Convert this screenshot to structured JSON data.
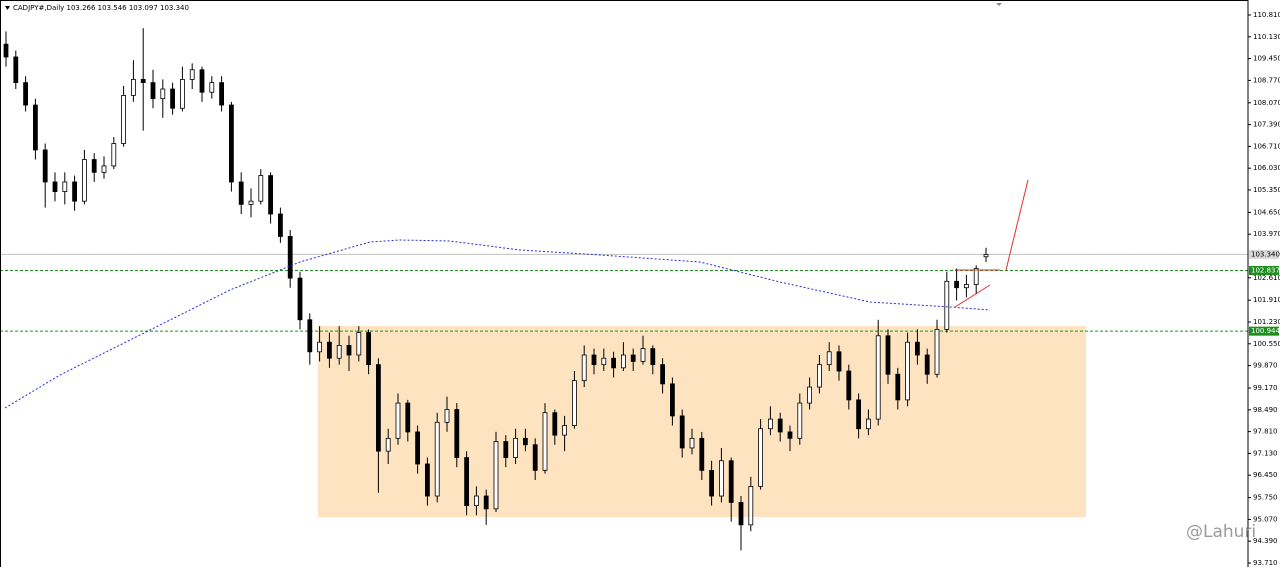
{
  "chart_data": {
    "type": "candlestick",
    "title": "CADJPY#,Daily  103.266 103.546 103.097 103.340",
    "watermark": "@Lahuri",
    "ylim": [
      93.585,
      111.278
    ],
    "yticks": [
      {
        "value": 110.81,
        "label": "110.810"
      },
      {
        "value": 110.13,
        "label": "110.130"
      },
      {
        "value": 109.45,
        "label": "109.450"
      },
      {
        "value": 108.77,
        "label": "108.770"
      },
      {
        "value": 108.07,
        "label": "108.070"
      },
      {
        "value": 107.39,
        "label": "107.390"
      },
      {
        "value": 106.71,
        "label": "106.710"
      },
      {
        "value": 106.03,
        "label": "106.030"
      },
      {
        "value": 105.35,
        "label": "105.350"
      },
      {
        "value": 104.65,
        "label": "104.650"
      },
      {
        "value": 103.97,
        "label": "103.970"
      },
      {
        "value": 102.61,
        "label": "102.610"
      },
      {
        "value": 101.91,
        "label": "101.910"
      },
      {
        "value": 101.23,
        "label": "101.230"
      },
      {
        "value": 100.55,
        "label": "100.550"
      },
      {
        "value": 99.87,
        "label": "99.870"
      },
      {
        "value": 99.17,
        "label": "99.170"
      },
      {
        "value": 98.49,
        "label": "98.490"
      },
      {
        "value": 97.81,
        "label": "97.810"
      },
      {
        "value": 97.13,
        "label": "97.130"
      },
      {
        "value": 96.45,
        "label": "96.450"
      },
      {
        "value": 95.75,
        "label": "95.750"
      },
      {
        "value": 95.07,
        "label": "95.070"
      },
      {
        "value": 94.39,
        "label": "94.390"
      },
      {
        "value": 93.71,
        "label": "93.710"
      }
    ],
    "last_price": {
      "value": 103.34,
      "label": "103.340"
    },
    "hlines": [
      102.837,
      100.944
    ],
    "hline_color": "#1e8f1e",
    "up_color": "#ffffff",
    "down_color": "#000000",
    "ohlc": [
      [
        109.9,
        110.3,
        109.2,
        109.5
      ],
      [
        109.5,
        109.7,
        108.5,
        108.7
      ],
      [
        108.7,
        108.9,
        107.8,
        108.0
      ],
      [
        108.0,
        108.2,
        106.3,
        106.6
      ],
      [
        106.6,
        106.8,
        104.8,
        105.6
      ],
      [
        105.6,
        105.9,
        105.0,
        105.3
      ],
      [
        105.3,
        105.9,
        104.9,
        105.6
      ],
      [
        105.6,
        105.8,
        104.7,
        105.0
      ],
      [
        105.0,
        106.6,
        104.9,
        106.3
      ],
      [
        106.3,
        106.5,
        105.6,
        105.9
      ],
      [
        105.9,
        106.4,
        105.7,
        106.1
      ],
      [
        106.1,
        107.0,
        106.0,
        106.8
      ],
      [
        106.8,
        108.6,
        106.7,
        108.3
      ],
      [
        108.3,
        109.4,
        108.1,
        108.8
      ],
      [
        108.8,
        110.4,
        107.2,
        108.7
      ],
      [
        108.7,
        109.1,
        107.9,
        108.2
      ],
      [
        108.2,
        108.8,
        107.6,
        108.5
      ],
      [
        108.5,
        108.7,
        107.7,
        107.9
      ],
      [
        107.9,
        109.2,
        107.8,
        108.8
      ],
      [
        108.8,
        109.3,
        108.5,
        109.1
      ],
      [
        109.1,
        109.2,
        108.1,
        108.4
      ],
      [
        108.4,
        108.9,
        108.2,
        108.7
      ],
      [
        108.7,
        108.9,
        107.8,
        108.0
      ],
      [
        108.0,
        108.1,
        105.3,
        105.6
      ],
      [
        105.6,
        105.9,
        104.6,
        104.9
      ],
      [
        104.9,
        105.4,
        104.5,
        105.0
      ],
      [
        105.0,
        106.0,
        104.9,
        105.8
      ],
      [
        105.8,
        105.9,
        104.3,
        104.6
      ],
      [
        104.6,
        104.8,
        103.7,
        103.9
      ],
      [
        103.9,
        104.1,
        102.3,
        102.6
      ],
      [
        102.6,
        102.8,
        101.0,
        101.3
      ],
      [
        101.3,
        101.5,
        99.9,
        100.3
      ],
      [
        100.3,
        101.1,
        100.0,
        100.6
      ],
      [
        100.6,
        100.9,
        99.8,
        100.1
      ],
      [
        100.1,
        101.1,
        99.9,
        100.5
      ],
      [
        100.5,
        100.8,
        99.7,
        100.2
      ],
      [
        100.2,
        101.1,
        100.0,
        100.9
      ],
      [
        100.9,
        101.0,
        99.6,
        99.9
      ],
      [
        99.9,
        100.1,
        95.9,
        97.2
      ],
      [
        97.2,
        97.9,
        96.8,
        97.6
      ],
      [
        97.6,
        99.0,
        97.4,
        98.7
      ],
      [
        98.7,
        98.8,
        97.5,
        97.8
      ],
      [
        97.8,
        98.0,
        96.5,
        96.8
      ],
      [
        96.8,
        97.0,
        95.5,
        95.8
      ],
      [
        95.8,
        98.4,
        95.6,
        98.1
      ],
      [
        98.1,
        98.9,
        97.8,
        98.5
      ],
      [
        98.5,
        98.7,
        96.7,
        97.0
      ],
      [
        97.0,
        97.2,
        95.2,
        95.5
      ],
      [
        95.5,
        96.1,
        95.2,
        95.8
      ],
      [
        95.8,
        96.0,
        94.9,
        95.4
      ],
      [
        95.4,
        97.8,
        95.3,
        97.5
      ],
      [
        97.5,
        97.7,
        96.7,
        97.0
      ],
      [
        97.0,
        97.9,
        96.8,
        97.6
      ],
      [
        97.6,
        97.9,
        97.2,
        97.4
      ],
      [
        97.4,
        97.6,
        96.3,
        96.6
      ],
      [
        96.6,
        98.7,
        96.5,
        98.4
      ],
      [
        98.4,
        98.5,
        97.4,
        97.7
      ],
      [
        97.7,
        98.3,
        97.2,
        98.0
      ],
      [
        98.0,
        99.7,
        97.9,
        99.4
      ],
      [
        99.4,
        100.5,
        99.2,
        100.2
      ],
      [
        100.2,
        100.4,
        99.6,
        99.9
      ],
      [
        99.9,
        100.4,
        99.7,
        100.1
      ],
      [
        100.1,
        100.3,
        99.5,
        99.8
      ],
      [
        99.8,
        100.6,
        99.7,
        100.2
      ],
      [
        100.2,
        100.4,
        99.7,
        100.0
      ],
      [
        100.0,
        100.8,
        99.9,
        100.4
      ],
      [
        100.4,
        100.5,
        99.6,
        99.9
      ],
      [
        99.9,
        100.1,
        99.0,
        99.3
      ],
      [
        99.3,
        99.5,
        98.0,
        98.3
      ],
      [
        98.3,
        98.5,
        97.0,
        97.3
      ],
      [
        97.3,
        97.9,
        97.1,
        97.6
      ],
      [
        97.6,
        97.8,
        96.3,
        96.6
      ],
      [
        96.6,
        96.9,
        95.5,
        95.8
      ],
      [
        95.8,
        97.3,
        95.6,
        96.9
      ],
      [
        96.9,
        97.0,
        95.0,
        95.6
      ],
      [
        95.6,
        95.8,
        94.1,
        94.9
      ],
      [
        94.9,
        96.4,
        94.7,
        96.1
      ],
      [
        96.1,
        98.2,
        96.0,
        97.9
      ],
      [
        97.9,
        98.6,
        97.7,
        98.2
      ],
      [
        98.2,
        98.4,
        97.5,
        97.8
      ],
      [
        97.8,
        98.0,
        97.2,
        97.6
      ],
      [
        97.6,
        99.0,
        97.4,
        98.7
      ],
      [
        98.7,
        99.5,
        98.5,
        99.2
      ],
      [
        99.2,
        100.2,
        99.0,
        99.9
      ],
      [
        99.9,
        100.6,
        99.7,
        100.3
      ],
      [
        100.3,
        100.5,
        99.4,
        99.7
      ],
      [
        99.7,
        99.9,
        98.5,
        98.8
      ],
      [
        98.8,
        99.0,
        97.6,
        97.9
      ],
      [
        97.9,
        98.5,
        97.7,
        98.2
      ],
      [
        98.2,
        101.3,
        98.0,
        100.8
      ],
      [
        100.8,
        101.0,
        99.3,
        99.6
      ],
      [
        99.6,
        99.8,
        98.5,
        98.8
      ],
      [
        98.8,
        100.9,
        98.6,
        100.6
      ],
      [
        100.6,
        101.0,
        99.9,
        100.2
      ],
      [
        100.2,
        100.4,
        99.3,
        99.6
      ],
      [
        99.6,
        101.3,
        99.5,
        101.0
      ],
      [
        101.0,
        102.8,
        100.9,
        102.5
      ],
      [
        102.5,
        102.9,
        101.9,
        102.3
      ],
      [
        102.3,
        102.7,
        102.0,
        102.4
      ],
      [
        102.4,
        103.0,
        102.1,
        102.9
      ],
      [
        103.266,
        103.546,
        103.097,
        103.34
      ]
    ]
  }
}
